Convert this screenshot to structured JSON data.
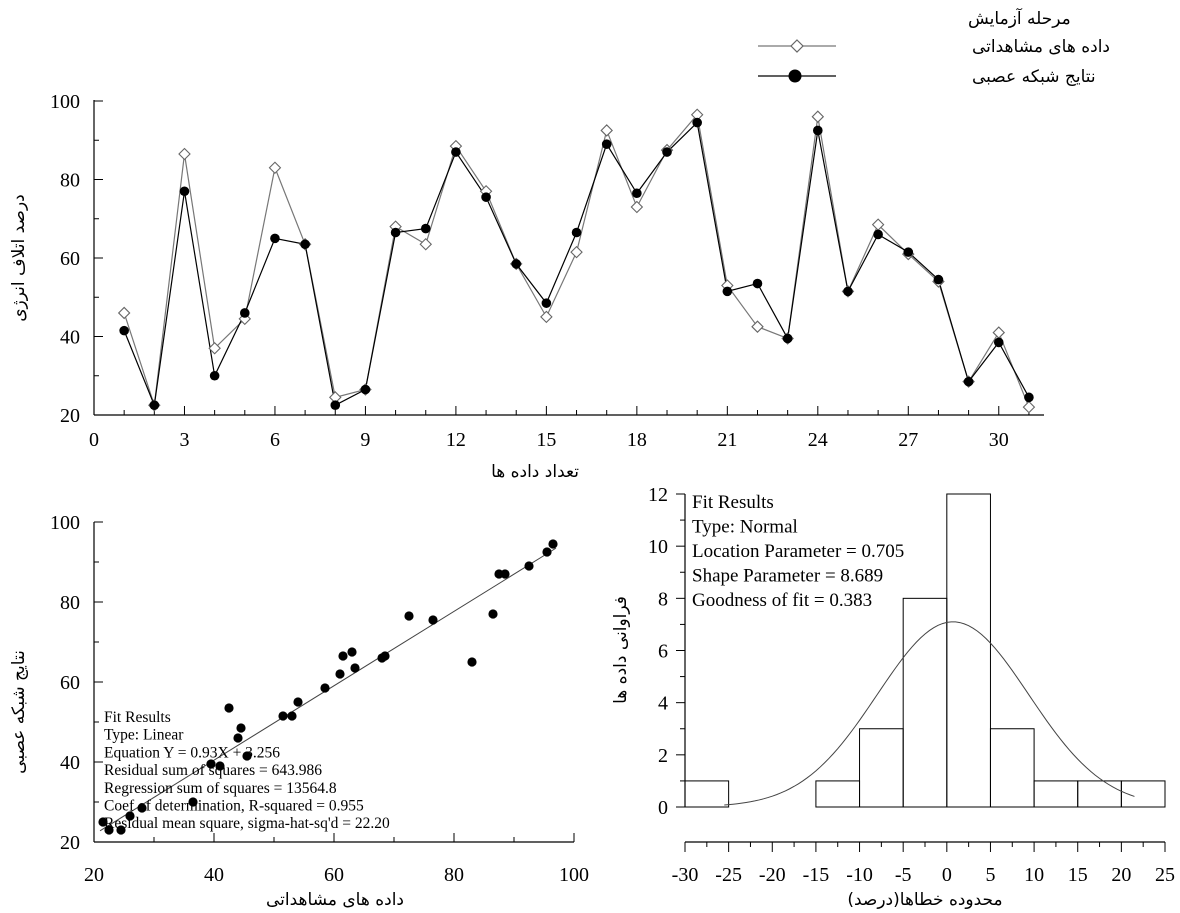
{
  "chart_data": [
    {
      "type": "line",
      "id": "top",
      "title": "",
      "legend": {
        "title": "مرحله آزمایش",
        "placement": "top-right",
        "entries": [
          "داده های مشاهداتی",
          "نتایج شبکه عصبی"
        ]
      },
      "xlabel": "تعداد داده ها",
      "ylabel": "درصد اتلاف انرژی",
      "xlim": [
        0,
        31.5
      ],
      "ylim": [
        20,
        100
      ],
      "x_ticks": [
        0,
        3,
        6,
        9,
        12,
        15,
        18,
        21,
        24,
        27,
        30
      ],
      "y_ticks": [
        20,
        40,
        60,
        80,
        100
      ],
      "x": [
        1,
        2,
        3,
        4,
        5,
        6,
        7,
        8,
        9,
        10,
        11,
        12,
        13,
        14,
        15,
        16,
        17,
        18,
        19,
        20,
        21,
        22,
        23,
        24,
        25,
        26,
        27,
        28,
        29,
        30,
        31
      ],
      "series": [
        {
          "name": "داده های مشاهداتی",
          "marker": "open-diamond",
          "color": "#777777",
          "values": [
            46,
            22.5,
            86.5,
            37,
            44.5,
            83,
            63.5,
            24.5,
            26.5,
            68,
            63.5,
            88.5,
            77,
            58.5,
            45,
            61.5,
            92.5,
            73,
            87.5,
            96.5,
            53,
            42.5,
            39.5,
            96,
            51.5,
            68.5,
            61,
            54,
            28.5,
            41,
            22
          ]
        },
        {
          "name": "نتایج شبکه عصبی",
          "marker": "filled-circle",
          "color": "#000000",
          "values": [
            41.5,
            22.5,
            77,
            30,
            46,
            65,
            63.5,
            22.5,
            26.5,
            66.5,
            67.5,
            87,
            75.5,
            58.5,
            48.5,
            66.5,
            89,
            76.5,
            87,
            94.5,
            51.5,
            53.5,
            39.5,
            92.5,
            51.5,
            66,
            61.5,
            54.5,
            28.5,
            38.5,
            24.5
          ]
        }
      ]
    },
    {
      "type": "scatter",
      "id": "bottom-left",
      "title": "",
      "xlabel": "داده های مشاهداتی",
      "ylabel": "نتایج شبکه عصبی",
      "xlim": [
        20,
        100
      ],
      "ylim": [
        20,
        100
      ],
      "x_ticks": [
        20,
        40,
        60,
        80,
        100
      ],
      "y_ticks": [
        20,
        40,
        60,
        80,
        100
      ],
      "points": [
        [
          21.5,
          25
        ],
        [
          22.5,
          23
        ],
        [
          24.5,
          23
        ],
        [
          26,
          26.5
        ],
        [
          28,
          28.5
        ],
        [
          36.5,
          30
        ],
        [
          39.5,
          39.5
        ],
        [
          41,
          39
        ],
        [
          42.5,
          53.5
        ],
        [
          44,
          46
        ],
        [
          44.5,
          48.5
        ],
        [
          45.5,
          41.5
        ],
        [
          51.5,
          51.5
        ],
        [
          53,
          51.5
        ],
        [
          54,
          55
        ],
        [
          58.5,
          58.5
        ],
        [
          61,
          62
        ],
        [
          61.5,
          66.5
        ],
        [
          63,
          67.5
        ],
        [
          63.5,
          63.5
        ],
        [
          68,
          66
        ],
        [
          68.5,
          66.5
        ],
        [
          72.5,
          76.5
        ],
        [
          76.5,
          75.5
        ],
        [
          83,
          65
        ],
        [
          86.5,
          77
        ],
        [
          87.5,
          87
        ],
        [
          88.5,
          87
        ],
        [
          92.5,
          89
        ],
        [
          95.5,
          92.5
        ],
        [
          96.5,
          94.5
        ]
      ],
      "fit_line": {
        "slope": 0.93,
        "intercept": 3.256,
        "x_range": [
          21,
          97
        ]
      },
      "annotation": [
        "Fit Results",
        "Type: Linear",
        "Equation Y = 0.93X + 3.256",
        "Residual sum of squares = 643.986",
        "Regression sum of squares = 13564.8",
        "Coef of determination, R-squared = 0.955",
        "Residual mean square, sigma-hat-sq'd = 22.20"
      ]
    },
    {
      "type": "bar",
      "id": "bottom-right",
      "title": "",
      "xlabel": "محدوده خطاها(درصد)",
      "ylabel": "فراوانی داده ها",
      "xlim": [
        -30,
        25
      ],
      "ylim": [
        0,
        12
      ],
      "x_ticks": [
        -30,
        -25,
        -20,
        -15,
        -10,
        -5,
        0,
        5,
        10,
        15,
        20,
        25
      ],
      "y_ticks": [
        0,
        2,
        4,
        6,
        8,
        10,
        12
      ],
      "bins": [
        [
          -30,
          -25,
          1
        ],
        [
          -15,
          -10,
          1
        ],
        [
          -10,
          -5,
          3
        ],
        [
          -5,
          0,
          8
        ],
        [
          0,
          5,
          12
        ],
        [
          5,
          10,
          3
        ],
        [
          10,
          15,
          1
        ],
        [
          15,
          20,
          1
        ],
        [
          20,
          25,
          1
        ]
      ],
      "normal_fit": {
        "location": 0.705,
        "scale": 8.689,
        "peak": 7.1,
        "x_range": [
          -25.5,
          21.5
        ]
      },
      "annotation": [
        "Fit Results",
        "Type: Normal",
        "Location Parameter = 0.705",
        "Shape Parameter = 8.689",
        "Goodness of fit = 0.383"
      ]
    }
  ]
}
